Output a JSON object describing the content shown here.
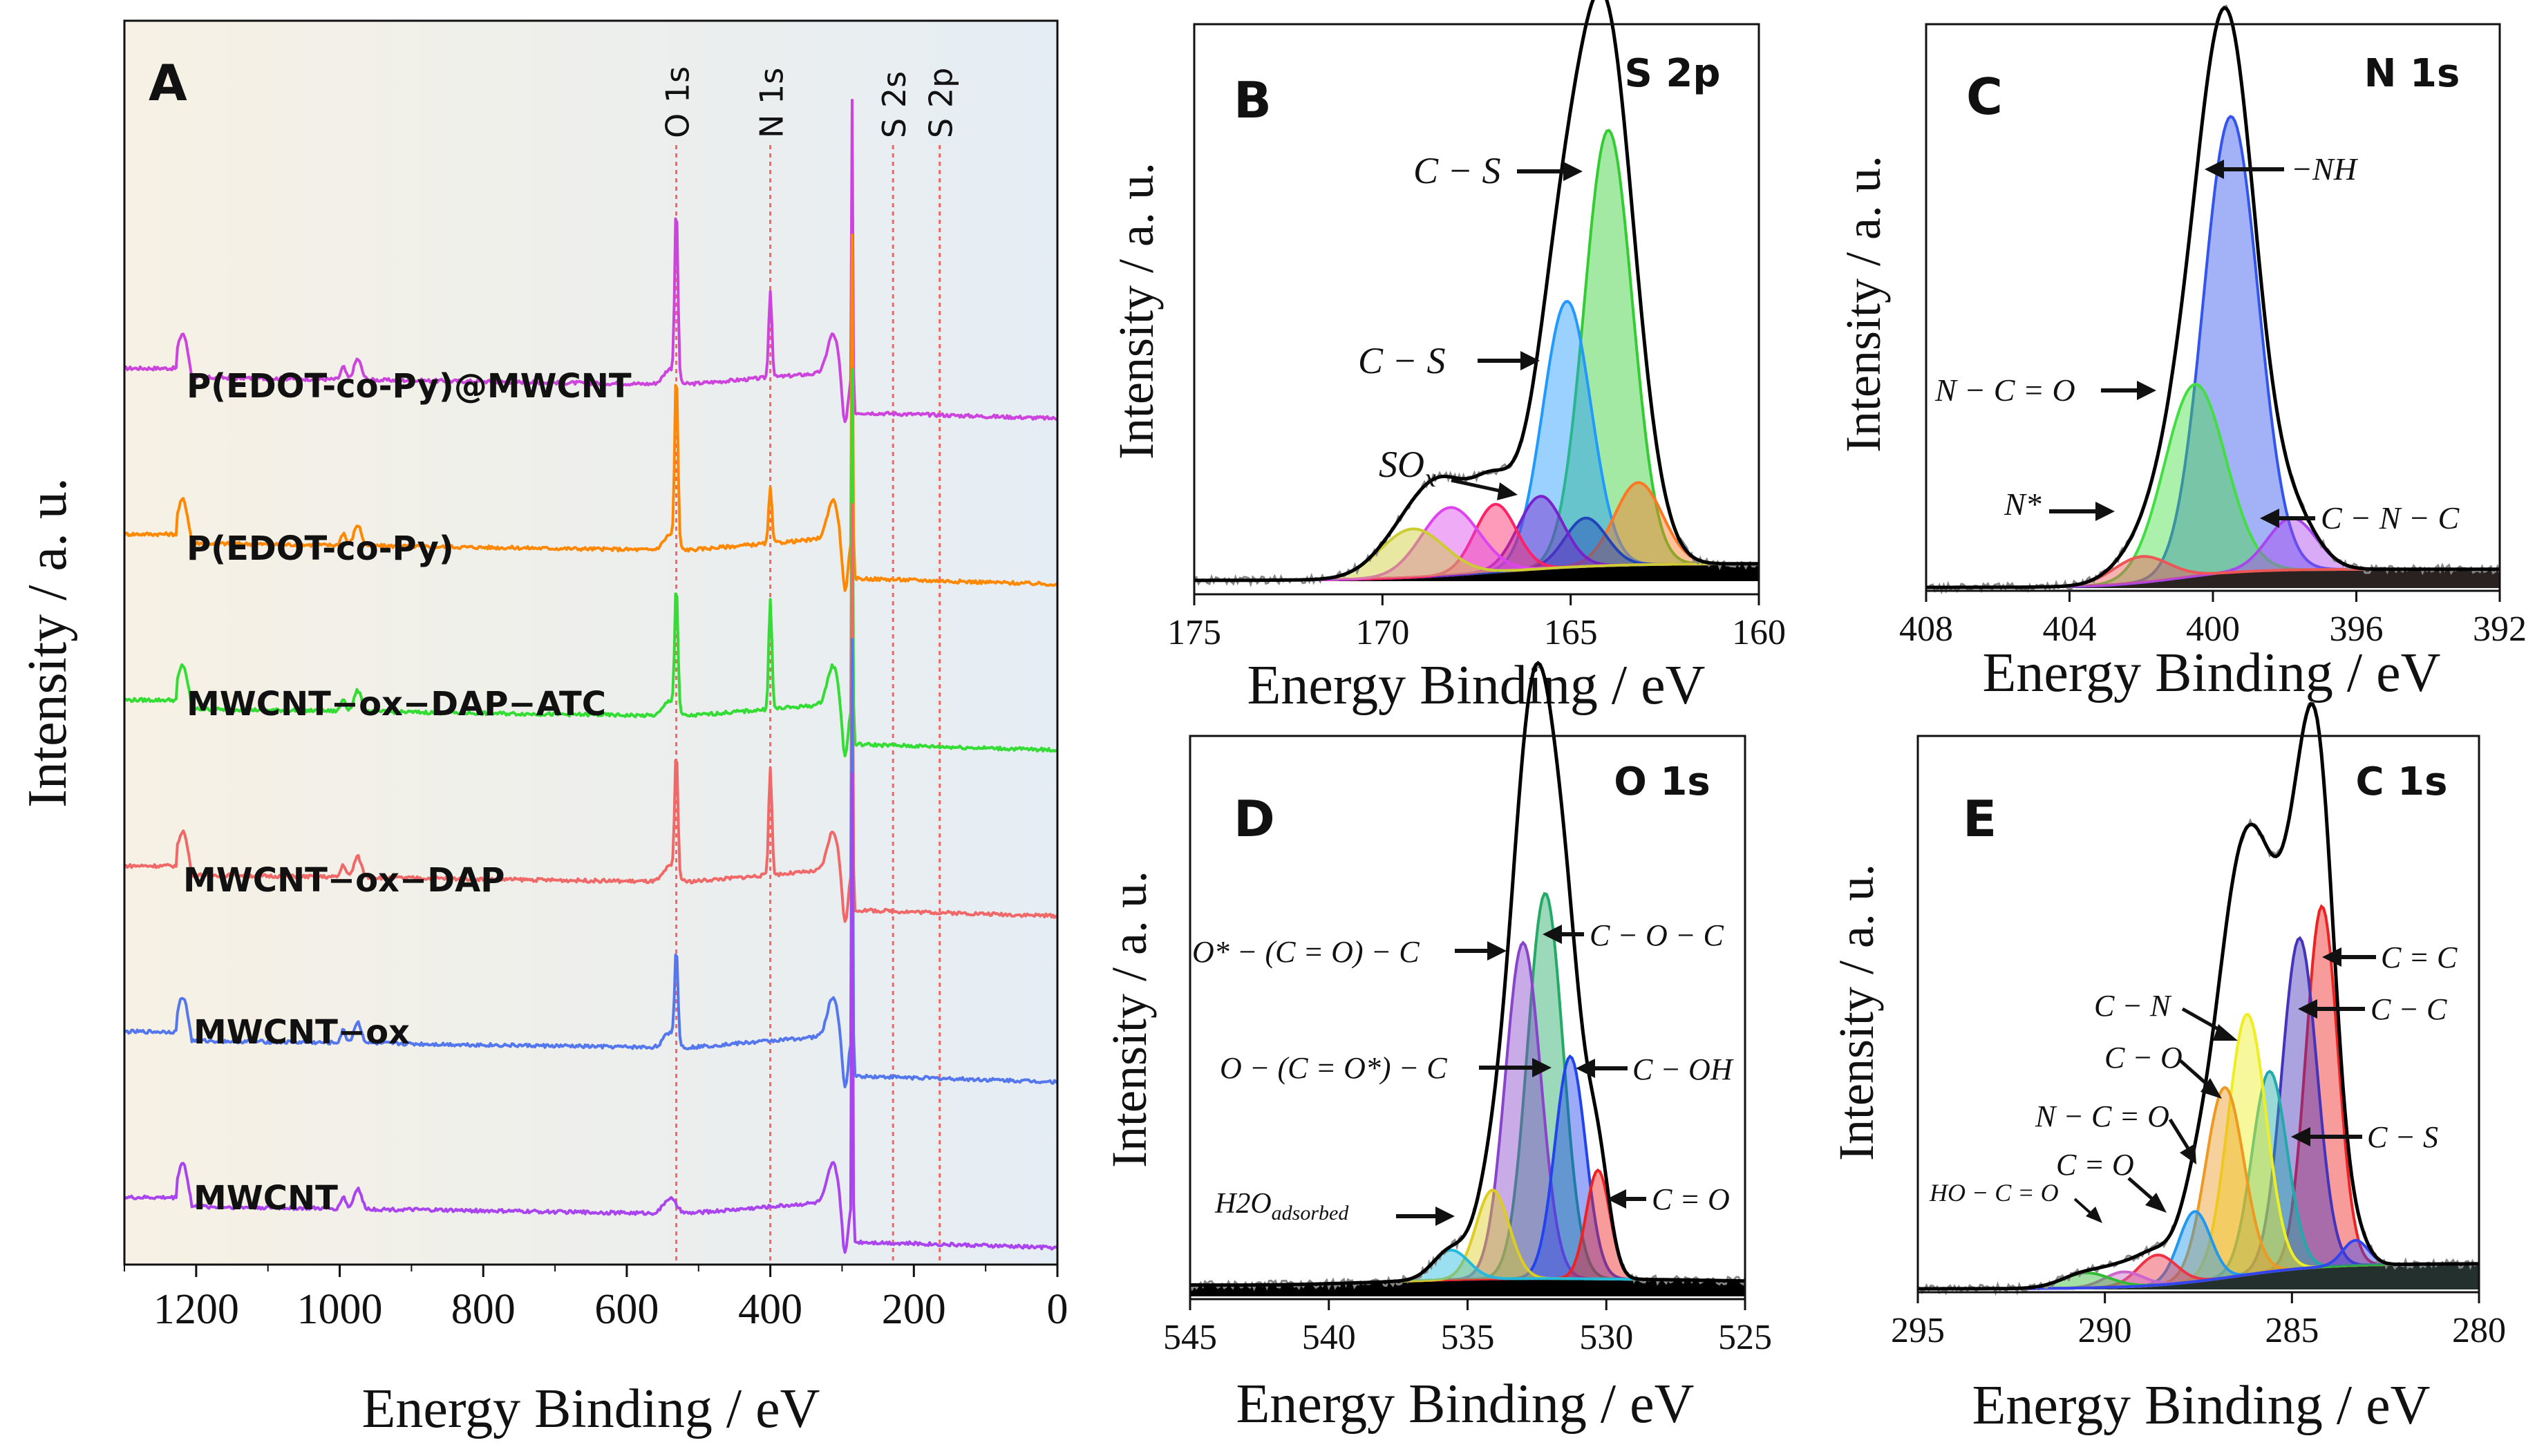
{
  "chart_data": [
    {
      "panel": "A",
      "type": "line",
      "title": "",
      "xlabel": "Energy Binding / eV",
      "ylabel": "Intensity  / a. u.",
      "xlim": [
        1300,
        0
      ],
      "x_ticks": [
        "1200",
        "1000",
        "800",
        "600",
        "400",
        "200",
        "0"
      ],
      "tick_values": [
        1200,
        1000,
        800,
        600,
        400,
        200,
        0
      ],
      "peak_markers": [
        {
          "label": "O 1s",
          "x": 531
        },
        {
          "label": "N 1s",
          "x": 400
        },
        {
          "label": "S 2s",
          "x": 229
        },
        {
          "label": "S 2p",
          "x": 164
        }
      ],
      "series": [
        {
          "name": "P(EDOT-co-Py)@MWCNT",
          "color": "#cc44dd",
          "offset": 5,
          "peaks": {
            "O": 5.5,
            "N": 2.8,
            "S": 1.2
          }
        },
        {
          "name": "P(EDOT-co-Py)",
          "color": "#ff8800",
          "offset": 4,
          "peaks": {
            "O": 5.5,
            "N": 1.8,
            "S": 1.5
          }
        },
        {
          "name": "MWCNT−ox−DAP−ATC",
          "color": "#33dd33",
          "offset": 3,
          "peaks": {
            "O": 4.0,
            "N": 3.5,
            "S": 0.8
          }
        },
        {
          "name": "MWCNT−ox−DAP",
          "color": "#f06868",
          "offset": 2,
          "peaks": {
            "O": 4.0,
            "N": 3.5,
            "S": 0
          }
        },
        {
          "name": "MWCNT−ox",
          "color": "#5577ee",
          "offset": 1,
          "peaks": {
            "O": 3.0,
            "N": 0,
            "S": 0
          }
        },
        {
          "name": "MWCNT",
          "color": "#aa44ee",
          "offset": 0,
          "peaks": {
            "O": 0,
            "N": 0,
            "S": 0
          }
        }
      ]
    },
    {
      "panel": "B",
      "type": "line",
      "title": "S 2p",
      "xlabel": "Energy Binding / eV",
      "ylabel": "Intensity  / a. u.",
      "xlim": [
        175,
        160
      ],
      "x_ticks": [
        "175",
        "170",
        "165",
        "160"
      ],
      "tick_values": [
        175,
        170,
        165,
        160
      ],
      "components": [
        {
          "center": 164.0,
          "height": 0.9,
          "fwhm": 1.5,
          "color": "#33cc33"
        },
        {
          "center": 165.1,
          "height": 0.55,
          "fwhm": 1.5,
          "color": "#2299ff"
        },
        {
          "center": 163.2,
          "height": 0.17,
          "fwhm": 1.5,
          "color": "#ff7722"
        },
        {
          "center": 164.6,
          "height": 0.1,
          "fwhm": 1.3,
          "color": "#2244bb"
        },
        {
          "center": 165.8,
          "height": 0.15,
          "fwhm": 1.4,
          "color": "#7722cc"
        },
        {
          "center": 167.0,
          "height": 0.14,
          "fwhm": 1.3,
          "color": "#ff2266"
        },
        {
          "center": 168.2,
          "height": 0.14,
          "fwhm": 1.8,
          "color": "#dd44ee"
        },
        {
          "center": 169.2,
          "height": 0.1,
          "fwhm": 2.0,
          "color": "#cccc33"
        }
      ],
      "annotations": [
        {
          "text": "C − S",
          "x": 164.4
        },
        {
          "text": "C − S",
          "x": 165.3
        },
        {
          "text": "SO",
          "sub": "x",
          "x": 166.5
        }
      ]
    },
    {
      "panel": "C",
      "type": "line",
      "title": "N 1s",
      "xlabel": "Energy Binding / eV",
      "ylabel": "Intensity  / a. u.",
      "xlim": [
        408,
        392
      ],
      "x_ticks": [
        "408",
        "404",
        "400",
        "396",
        "392"
      ],
      "tick_values": [
        408,
        404,
        400,
        396,
        392
      ],
      "components": [
        {
          "center": 399.5,
          "height": 0.88,
          "fwhm": 1.8,
          "color": "#3355ee"
        },
        {
          "center": 400.5,
          "height": 0.37,
          "fwhm": 2.0,
          "color": "#44dd44"
        },
        {
          "center": 397.8,
          "height": 0.1,
          "fwhm": 1.6,
          "color": "#aa44ee"
        },
        {
          "center": 402.0,
          "height": 0.05,
          "fwhm": 1.8,
          "color": "#ee5555"
        }
      ],
      "annotations": [
        {
          "text": "−NH",
          "x": 399.4
        },
        {
          "text": "N − C = O",
          "x": 400.5
        },
        {
          "text": "N*",
          "x": 402.0
        },
        {
          "text": "C − N − C",
          "x": 397.8
        }
      ]
    },
    {
      "panel": "D",
      "type": "line",
      "title": "O 1s",
      "xlabel": "Energy Binding / eV",
      "ylabel": "Intensity  / a. u.",
      "xlim": [
        545,
        525
      ],
      "x_ticks": [
        "545",
        "540",
        "535",
        "530",
        "525"
      ],
      "tick_values": [
        545,
        540,
        535,
        530,
        525
      ],
      "components": [
        {
          "center": 532.2,
          "height": 0.78,
          "fwhm": 1.5,
          "color": "#22aa66"
        },
        {
          "center": 533.0,
          "height": 0.68,
          "fwhm": 1.5,
          "color": "#8844cc"
        },
        {
          "center": 531.3,
          "height": 0.45,
          "fwhm": 1.3,
          "color": "#2244ee"
        },
        {
          "center": 530.3,
          "height": 0.22,
          "fwhm": 1.0,
          "color": "#ee2222"
        },
        {
          "center": 534.1,
          "height": 0.18,
          "fwhm": 1.4,
          "color": "#ddcc22"
        },
        {
          "center": 535.6,
          "height": 0.06,
          "fwhm": 1.5,
          "color": "#22bbdd"
        }
      ],
      "annotations": [
        {
          "text": "C − O − C",
          "x": 532.2
        },
        {
          "text": "O* − (C = O) − C",
          "x": 533.1
        },
        {
          "text": "O − (C = O*) − C",
          "x": 532.5
        },
        {
          "text": "C − OH",
          "x": 531.3
        },
        {
          "text": "C = O",
          "x": 530.3
        },
        {
          "text": "H2O",
          "sub": "adsorbed",
          "x": 534.3
        }
      ]
    },
    {
      "panel": "E",
      "type": "line",
      "title": "C 1s",
      "xlabel": "Energy Binding / eV",
      "ylabel": "Intensity  / a. u.",
      "xlim": [
        295,
        280
      ],
      "x_ticks": [
        "295",
        "290",
        "285",
        "280"
      ],
      "tick_values": [
        295,
        290,
        285,
        280
      ],
      "components": [
        {
          "center": 284.2,
          "height": 0.72,
          "fwhm": 1.0,
          "color": "#ee2222"
        },
        {
          "center": 284.8,
          "height": 0.66,
          "fwhm": 1.1,
          "color": "#4433bb"
        },
        {
          "center": 285.6,
          "height": 0.4,
          "fwhm": 1.1,
          "color": "#22aaaa"
        },
        {
          "center": 286.2,
          "height": 0.52,
          "fwhm": 1.2,
          "color": "#eeee22"
        },
        {
          "center": 286.8,
          "height": 0.38,
          "fwhm": 1.2,
          "color": "#ee9922"
        },
        {
          "center": 287.6,
          "height": 0.14,
          "fwhm": 1.0,
          "color": "#2299ee"
        },
        {
          "center": 288.6,
          "height": 0.06,
          "fwhm": 1.2,
          "color": "#ee3344"
        },
        {
          "center": 289.5,
          "height": 0.03,
          "fwhm": 1.2,
          "color": "#cc66cc"
        },
        {
          "center": 290.5,
          "height": 0.03,
          "fwhm": 1.5,
          "color": "#33bb33"
        },
        {
          "center": 283.3,
          "height": 0.05,
          "fwhm": 0.8,
          "color": "#3344ee"
        }
      ],
      "annotations": [
        {
          "text": "C = C",
          "x": 284.1
        },
        {
          "text": "C − C",
          "x": 284.7
        },
        {
          "text": "C − N",
          "x": 286.2
        },
        {
          "text": "C − O",
          "x": 286.8
        },
        {
          "text": "N − C = O",
          "x": 287.6
        },
        {
          "text": "C = O",
          "x": 288.6
        },
        {
          "text": "C − S",
          "x": 285.6
        },
        {
          "text": "HO − C = O",
          "x": 289.8
        }
      ]
    }
  ]
}
